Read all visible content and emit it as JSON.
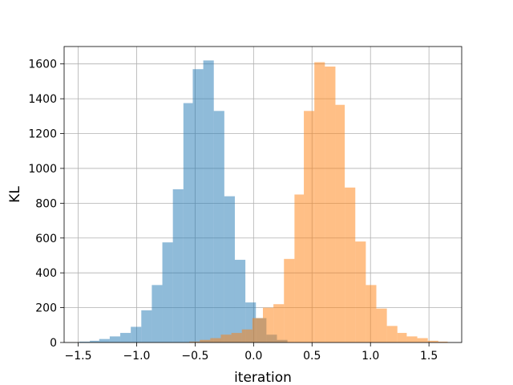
{
  "chart_data": {
    "type": "bar",
    "subtype": "overlapping-histogram",
    "title": "",
    "xlabel": "iteration",
    "ylabel": "KL",
    "xlim": [
      -1.62,
      1.78
    ],
    "ylim": [
      0,
      1700
    ],
    "x_ticks": [
      -1.5,
      -1.0,
      -0.5,
      0.0,
      0.5,
      1.0,
      1.5
    ],
    "x_tick_labels": [
      "−1.5",
      "−1.0",
      "−0.5",
      "0.0",
      "0.5",
      "1.0",
      "1.5"
    ],
    "y_ticks": [
      0,
      200,
      400,
      600,
      800,
      1000,
      1200,
      1400,
      1600
    ],
    "y_tick_labels": [
      "0",
      "200",
      "400",
      "600",
      "800",
      "1000",
      "1200",
      "1400",
      "1600"
    ],
    "grid": true,
    "legend": "none",
    "series": [
      {
        "color": "#1f77b4",
        "opacity": 0.5,
        "bins": [
          {
            "x0": -1.49,
            "x1": -1.4,
            "count": 5
          },
          {
            "x0": -1.4,
            "x1": -1.32,
            "count": 10
          },
          {
            "x0": -1.32,
            "x1": -1.23,
            "count": 20
          },
          {
            "x0": -1.23,
            "x1": -1.14,
            "count": 35
          },
          {
            "x0": -1.14,
            "x1": -1.05,
            "count": 55
          },
          {
            "x0": -1.05,
            "x1": -0.96,
            "count": 90
          },
          {
            "x0": -0.96,
            "x1": -0.87,
            "count": 185
          },
          {
            "x0": -0.87,
            "x1": -0.78,
            "count": 330
          },
          {
            "x0": -0.78,
            "x1": -0.69,
            "count": 575
          },
          {
            "x0": -0.69,
            "x1": -0.6,
            "count": 880
          },
          {
            "x0": -0.6,
            "x1": -0.52,
            "count": 1375
          },
          {
            "x0": -0.52,
            "x1": -0.43,
            "count": 1570
          },
          {
            "x0": -0.43,
            "x1": -0.34,
            "count": 1620
          },
          {
            "x0": -0.34,
            "x1": -0.25,
            "count": 1330
          },
          {
            "x0": -0.25,
            "x1": -0.16,
            "count": 840
          },
          {
            "x0": -0.16,
            "x1": -0.07,
            "count": 475
          },
          {
            "x0": -0.07,
            "x1": 0.02,
            "count": 230
          },
          {
            "x0": 0.02,
            "x1": 0.11,
            "count": 140
          },
          {
            "x0": 0.11,
            "x1": 0.2,
            "count": 45
          },
          {
            "x0": 0.2,
            "x1": 0.29,
            "count": 15
          }
        ]
      },
      {
        "color": "#ff7f0e",
        "opacity": 0.5,
        "bins": [
          {
            "x0": -0.55,
            "x1": -0.46,
            "count": 5
          },
          {
            "x0": -0.46,
            "x1": -0.37,
            "count": 15
          },
          {
            "x0": -0.37,
            "x1": -0.28,
            "count": 25
          },
          {
            "x0": -0.28,
            "x1": -0.19,
            "count": 45
          },
          {
            "x0": -0.19,
            "x1": -0.1,
            "count": 55
          },
          {
            "x0": -0.1,
            "x1": -0.01,
            "count": 75
          },
          {
            "x0": -0.01,
            "x1": 0.08,
            "count": 140
          },
          {
            "x0": 0.08,
            "x1": 0.17,
            "count": 200
          },
          {
            "x0": 0.17,
            "x1": 0.26,
            "count": 220
          },
          {
            "x0": 0.26,
            "x1": 0.35,
            "count": 480
          },
          {
            "x0": 0.35,
            "x1": 0.43,
            "count": 850
          },
          {
            "x0": 0.43,
            "x1": 0.52,
            "count": 1330
          },
          {
            "x0": 0.52,
            "x1": 0.61,
            "count": 1610
          },
          {
            "x0": 0.61,
            "x1": 0.7,
            "count": 1585
          },
          {
            "x0": 0.7,
            "x1": 0.78,
            "count": 1365
          },
          {
            "x0": 0.78,
            "x1": 0.87,
            "count": 890
          },
          {
            "x0": 0.87,
            "x1": 0.96,
            "count": 580
          },
          {
            "x0": 0.96,
            "x1": 1.05,
            "count": 330
          },
          {
            "x0": 1.05,
            "x1": 1.14,
            "count": 195
          },
          {
            "x0": 1.14,
            "x1": 1.23,
            "count": 95
          },
          {
            "x0": 1.23,
            "x1": 1.31,
            "count": 55
          },
          {
            "x0": 1.31,
            "x1": 1.4,
            "count": 35
          },
          {
            "x0": 1.4,
            "x1": 1.49,
            "count": 25
          },
          {
            "x0": 1.49,
            "x1": 1.58,
            "count": 10
          },
          {
            "x0": 1.58,
            "x1": 1.66,
            "count": 5
          }
        ]
      }
    ]
  }
}
